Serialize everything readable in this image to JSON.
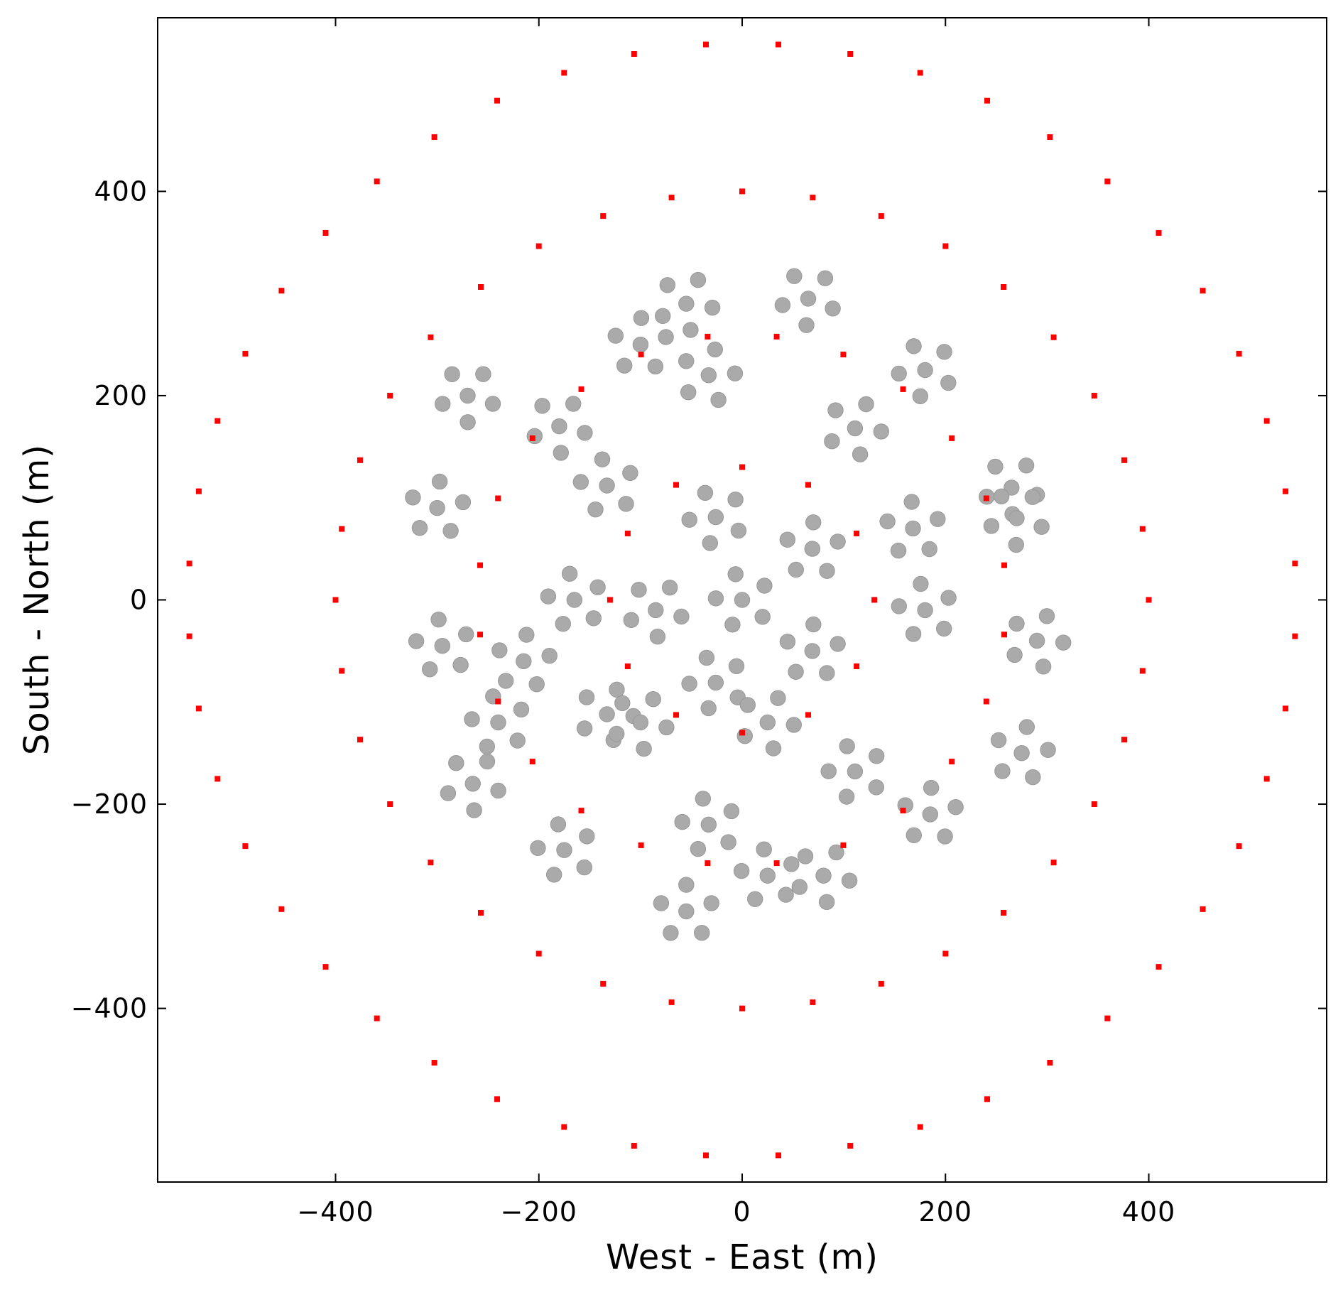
{
  "chart_data": {
    "type": "scatter",
    "title": "",
    "xlabel": "West - East (m)",
    "ylabel": "South - North (m)",
    "xlim": [
      -575,
      575
    ],
    "ylim": [
      -570,
      570
    ],
    "xticks": [
      -400,
      -200,
      0,
      200,
      400
    ],
    "yticks": [
      -400,
      -200,
      0,
      200,
      400
    ],
    "xtick_labels": [
      "−400",
      "−200",
      "0",
      "200",
      "400"
    ],
    "ytick_labels": [
      "−400",
      "−200",
      "0",
      "200",
      "400"
    ],
    "grid": false,
    "legend": "none",
    "series": [
      {
        "marker": "gray-cluster",
        "color": "#aaaaaa",
        "structure": "pentagonal groups of 6 stations, arranged as a core plus rings of 6, 12 and 18 groups",
        "group_centers": [
          [
            0,
            0
          ],
          [
            -85,
            -10
          ],
          [
            -26,
            81
          ],
          [
            69,
            50
          ],
          [
            69,
            -50
          ],
          [
            -26,
            -81
          ],
          [
            -133,
            112
          ],
          [
            -165,
            0
          ],
          [
            -133,
            -112
          ],
          [
            -33,
            220
          ],
          [
            -33,
            -220
          ],
          [
            111,
            168
          ],
          [
            168,
            70
          ],
          [
            180,
            -10
          ],
          [
            111,
            -168
          ],
          [
            -300,
            90
          ],
          [
            -295,
            -45
          ],
          [
            -265,
            -180
          ],
          [
            -180,
            170
          ],
          [
            -175,
            -245
          ],
          [
            -55,
            290
          ],
          [
            -55,
            -305
          ],
          [
            65,
            295
          ],
          [
            80,
            -270
          ],
          [
            180,
            225
          ],
          [
            185,
            -210
          ],
          [
            265,
            110
          ],
          [
            290,
            -40
          ],
          [
            275,
            -150
          ],
          [
            -270,
            200
          ],
          [
            25,
            -270
          ],
          [
            -240,
            -120
          ],
          [
            -100,
            -120
          ],
          [
            25,
            -120
          ],
          [
            -100,
            250
          ],
          [
            -215,
            -60
          ],
          [
            270,
            80
          ]
        ]
      },
      {
        "marker": "square",
        "color": "#ff0000",
        "structure": "outer stations on rings of 12, 24, 36 and 48 around the core",
        "ring_radii": [
          130,
          260,
          400,
          545
        ]
      }
    ]
  }
}
